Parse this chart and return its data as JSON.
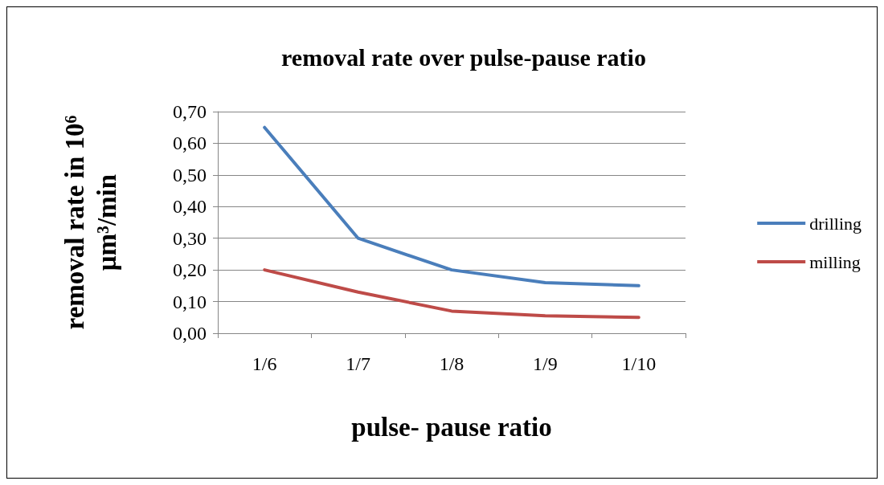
{
  "chart_data": {
    "type": "line",
    "title": "removal rate over pulse-pause ratio",
    "xlabel": "pulse- pause ratio",
    "ylabel": "removal rate in 10⁶ μm³/min",
    "categories": [
      "1/6",
      "1/7",
      "1/8",
      "1/9",
      "1/10"
    ],
    "series": [
      {
        "name": "drilling",
        "color": "#4a7ebb",
        "values": [
          0.65,
          0.3,
          0.2,
          0.16,
          0.15
        ]
      },
      {
        "name": "milling",
        "color": "#be4b48",
        "values": [
          0.2,
          0.13,
          0.07,
          0.055,
          0.05
        ]
      }
    ],
    "ylim": [
      0,
      0.7
    ],
    "yticks": [
      {
        "value": 0,
        "label": "0,00"
      },
      {
        "value": 0.1,
        "label": "0,10"
      },
      {
        "value": 0.2,
        "label": "0,20"
      },
      {
        "value": 0.3,
        "label": "0,30"
      },
      {
        "value": 0.4,
        "label": "0,40"
      },
      {
        "value": 0.5,
        "label": "0,50"
      },
      {
        "value": 0.6,
        "label": "0,60"
      },
      {
        "value": 0.7,
        "label": "0,70"
      }
    ],
    "grid": "y",
    "legend": "right",
    "marker": "none",
    "line_style": "solid"
  }
}
